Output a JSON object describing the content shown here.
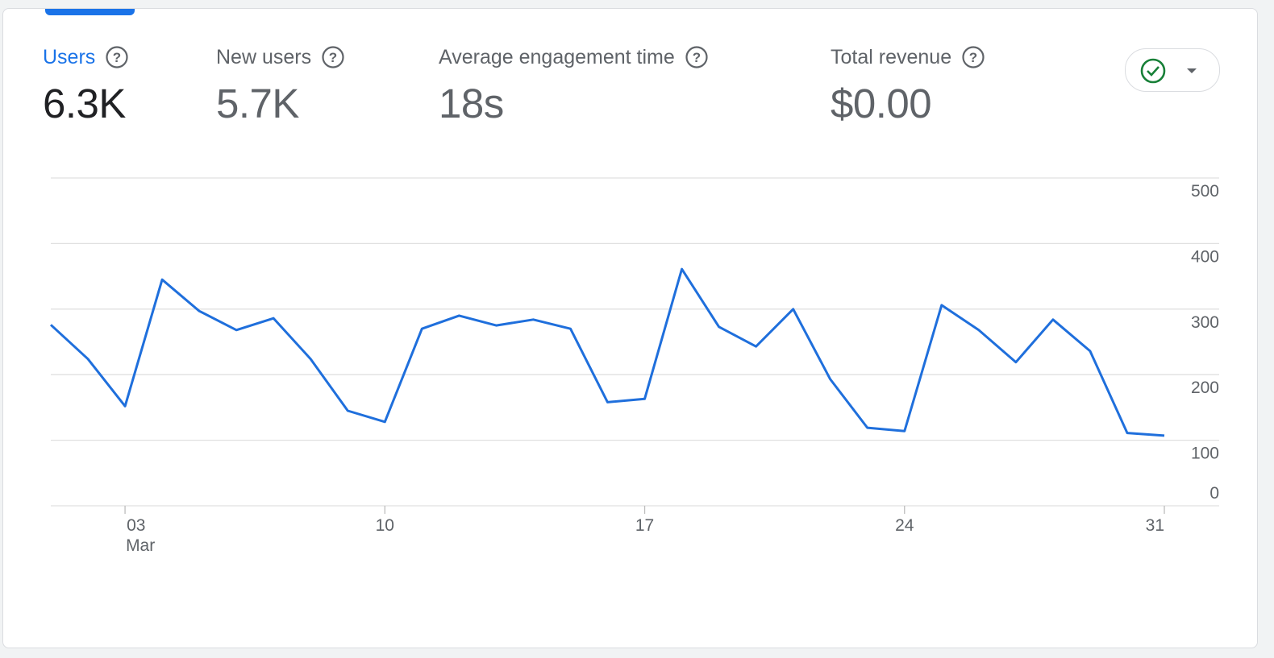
{
  "metrics": [
    {
      "label": "Users",
      "value": "6.3K"
    },
    {
      "label": "New users",
      "value": "5.7K"
    },
    {
      "label": "Average engagement time",
      "value": "18s"
    },
    {
      "label": "Total revenue",
      "value": "$0.00"
    }
  ],
  "chart_data": {
    "type": "line",
    "categories": [
      null,
      null,
      "03",
      null,
      null,
      null,
      null,
      null,
      null,
      "10",
      null,
      null,
      null,
      null,
      null,
      null,
      "17",
      null,
      null,
      null,
      null,
      null,
      null,
      "24",
      null,
      null,
      null,
      null,
      null,
      null,
      "31"
    ],
    "month_label": "Mar",
    "values": [
      276,
      224,
      152,
      345,
      297,
      268,
      286,
      224,
      145,
      128,
      270,
      290,
      275,
      284,
      270,
      158,
      163,
      361,
      273,
      243,
      300,
      193,
      119,
      114,
      306,
      268,
      219,
      284,
      236,
      111,
      107
    ],
    "color": "#1f6fdc",
    "ylim": [
      0,
      500
    ],
    "yticks": [
      0,
      100,
      200,
      300,
      400,
      500
    ],
    "grid": true
  }
}
